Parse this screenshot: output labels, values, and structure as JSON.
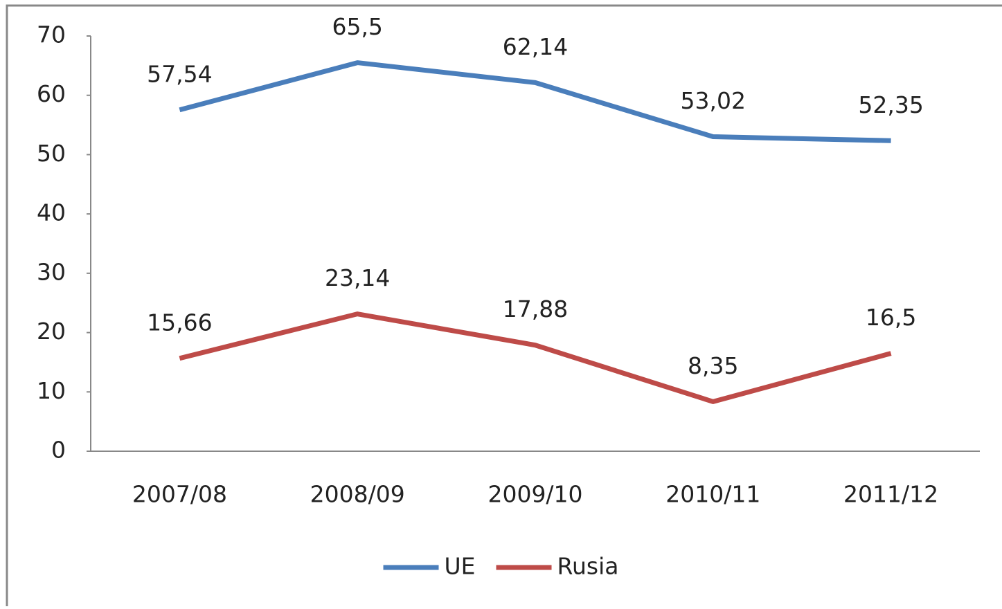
{
  "chart_data": {
    "type": "line",
    "categories": [
      "2007/08",
      "2008/09",
      "2009/10",
      "2010/11",
      "2011/12"
    ],
    "series": [
      {
        "name": "UE",
        "color": "#4a7ebb",
        "values": [
          57.54,
          65.5,
          62.14,
          53.02,
          52.35
        ],
        "value_labels": [
          "57,54",
          "65,5",
          "62,14",
          "53,02",
          "52,35"
        ]
      },
      {
        "name": "Rusia",
        "color": "#be4b48",
        "values": [
          15.66,
          23.14,
          17.88,
          8.35,
          16.5
        ],
        "value_labels": [
          "15,66",
          "23,14",
          "17,88",
          "8,35",
          "16,5"
        ]
      }
    ],
    "ylim": [
      0,
      70
    ],
    "yticks": [
      0,
      10,
      20,
      30,
      40,
      50,
      60,
      70
    ],
    "grid": false,
    "legend": "bottom"
  }
}
